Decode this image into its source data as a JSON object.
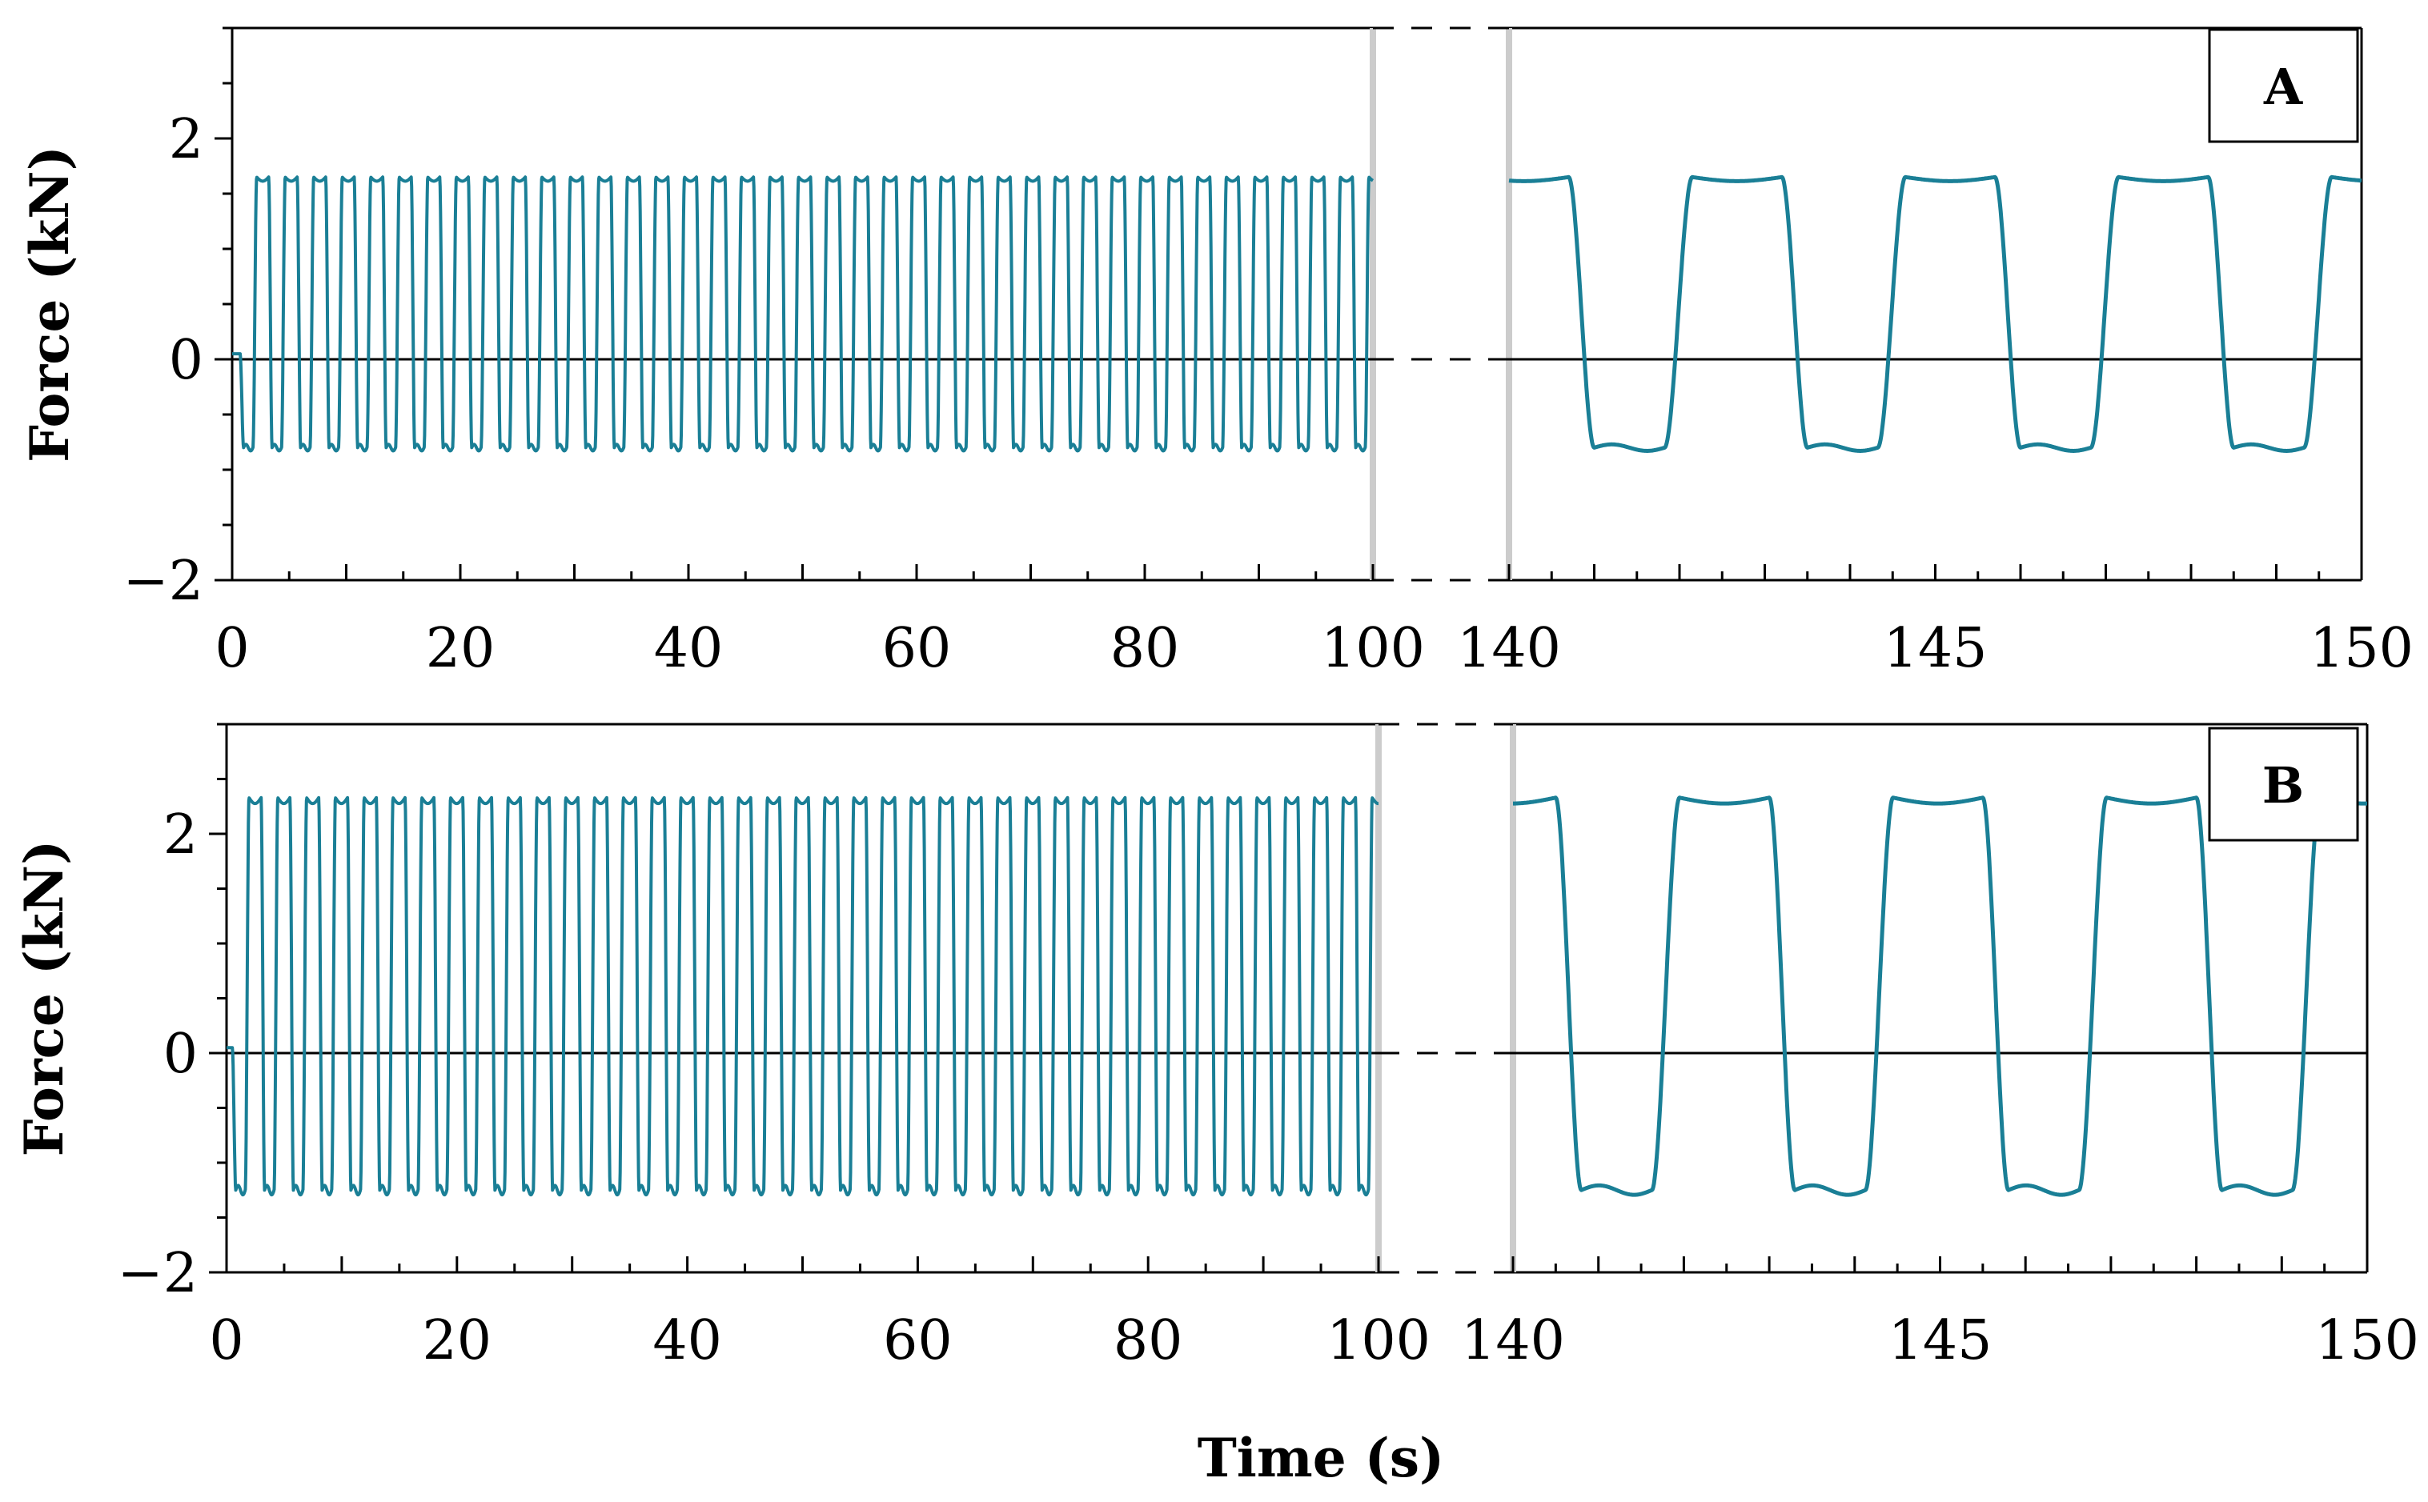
{
  "figure": {
    "xlabel": "Time (s)",
    "colors": {
      "series": "#1a7f96",
      "axis": "#000000",
      "break": "#cccccc"
    }
  },
  "chart_data": [
    {
      "type": "line",
      "panel": "A",
      "ylabel": "Force (kN)",
      "ylim": [
        -2,
        3
      ],
      "yticks": [
        -2,
        0,
        2
      ],
      "ytick_labels": [
        "−2",
        "0",
        "2"
      ],
      "segments": [
        {
          "xlim": [
            0,
            100
          ],
          "xticks": [
            0,
            20,
            40,
            60,
            80,
            100
          ],
          "xtick_labels": [
            "0",
            "20",
            "40",
            "60",
            "80",
            "100"
          ]
        },
        {
          "xlim": [
            140,
            150
          ],
          "xticks": [
            140,
            145,
            150
          ],
          "xtick_labels": [
            "140",
            "145",
            "150"
          ]
        }
      ],
      "series": [
        {
          "name": "Force",
          "period_s": 2.5,
          "peak_kN": 1.65,
          "trough_kN": -0.8,
          "start_s": 0.7,
          "initial_kN": 0.05
        }
      ],
      "zero_line": true
    },
    {
      "type": "line",
      "panel": "B",
      "ylabel": "Force (kN)",
      "ylim": [
        -2,
        3
      ],
      "yticks": [
        -2,
        0,
        2
      ],
      "ytick_labels": [
        "−2",
        "0",
        "2"
      ],
      "segments": [
        {
          "xlim": [
            0,
            100
          ],
          "xticks": [
            0,
            20,
            40,
            60,
            80,
            100
          ],
          "xtick_labels": [
            "0",
            "20",
            "40",
            "60",
            "80",
            "100"
          ]
        },
        {
          "xlim": [
            140,
            150
          ],
          "xticks": [
            140,
            145,
            150
          ],
          "xtick_labels": [
            "140",
            "145",
            "150"
          ]
        }
      ],
      "series": [
        {
          "name": "Force",
          "period_s": 2.5,
          "peak_kN": 2.33,
          "trough_kN": -1.25,
          "start_s": 0.5,
          "initial_kN": 0.05
        }
      ],
      "zero_line": true
    }
  ]
}
